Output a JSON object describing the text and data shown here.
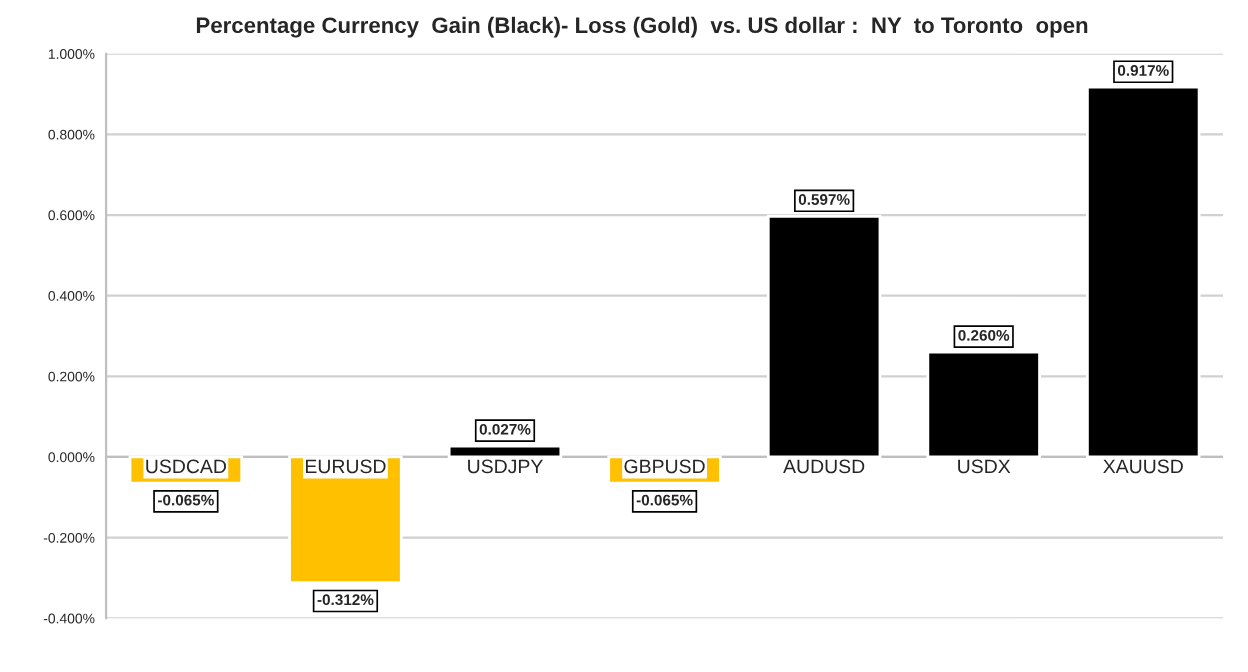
{
  "chart_data": {
    "type": "bar",
    "title": "Percentage Currency  Gain (Black)- Loss (Gold)  vs. US dollar :  NY  to Toronto  open",
    "categories": [
      "USDCAD",
      "EURUSD",
      "USDJPY",
      "GBPUSD",
      "AUDUSD",
      "USDX",
      "XAUUSD"
    ],
    "values": [
      -0.065,
      -0.312,
      0.027,
      -0.065,
      0.597,
      0.26,
      0.917
    ],
    "colors": [
      "#ffc000",
      "#ffc000",
      "#000000",
      "#ffc000",
      "#000000",
      "#000000",
      "#000000"
    ],
    "value_labels": [
      "-0.065%",
      "-0.312%",
      "0.027%",
      "-0.065%",
      "0.597%",
      "0.260%",
      "0.917%"
    ],
    "ylim": [
      -0.4,
      1.0
    ],
    "yticks": [
      {
        "value": -0.4,
        "label": "-0.400%"
      },
      {
        "value": -0.2,
        "label": "-0.200%"
      },
      {
        "value": 0,
        "label": "0.000%"
      },
      {
        "value": 0.2,
        "label": "0.200%"
      },
      {
        "value": 0.4,
        "label": "0.400%"
      },
      {
        "value": 0.6,
        "label": "0.600%"
      },
      {
        "value": 0.8,
        "label": "0.800%"
      },
      {
        "value": 1.0,
        "label": "1.000%"
      }
    ],
    "grid": "y"
  }
}
